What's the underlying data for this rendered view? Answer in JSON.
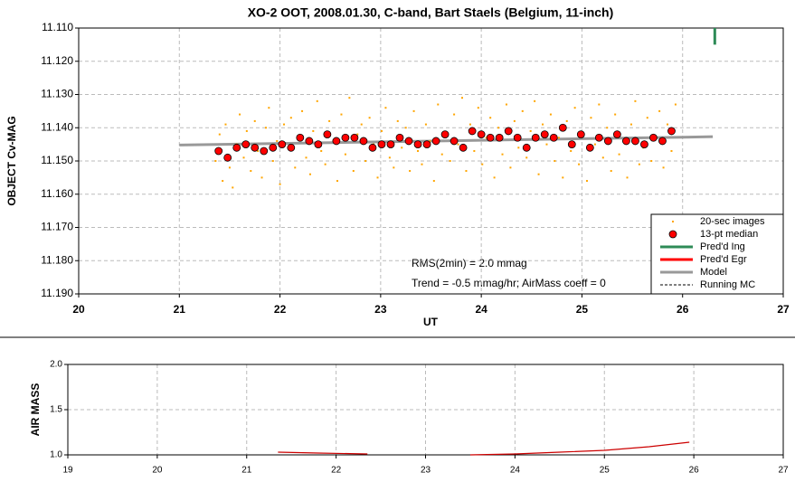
{
  "chart_data": [
    {
      "type": "scatter",
      "title": "XO-2 OOT, 2008.01.30, C-band, Bart Staels (Belgium, 11-inch)",
      "xlabel": "UT",
      "ylabel": "OBJECT Cv-MAG",
      "xlim": [
        20,
        27
      ],
      "xticks": [
        20,
        21,
        22,
        23,
        24,
        25,
        26,
        27
      ],
      "ylim": [
        11.11,
        11.19
      ],
      "inverted": true,
      "yticks": [
        {
          "value": 11.11,
          "label": "11.110"
        },
        {
          "value": 11.12,
          "label": "11.120"
        },
        {
          "value": 11.13,
          "label": "11.130"
        },
        {
          "value": 11.14,
          "label": "11.140"
        },
        {
          "value": 11.15,
          "label": "11.150"
        },
        {
          "value": 11.16,
          "label": "11.160"
        },
        {
          "value": 11.17,
          "label": "11.170"
        },
        {
          "value": 11.18,
          "label": "11.180"
        },
        {
          "value": 11.19,
          "label": "11.190"
        }
      ],
      "grid": true,
      "legend": "lower right",
      "annotations": [
        "RMS(2min) = 2.0 mmag",
        "Trend = -0.5 mmag/hr; AirMass coeff = 0"
      ],
      "series": [
        {
          "name": "20-sec images",
          "color": "#ffa500",
          "marker": "dot",
          "x": [
            21.36,
            21.4,
            21.43,
            21.46,
            21.5,
            21.53,
            21.57,
            21.6,
            21.64,
            21.67,
            21.71,
            21.75,
            21.78,
            21.82,
            21.86,
            21.89,
            21.93,
            21.97,
            22.0,
            22.04,
            22.08,
            22.11,
            22.15,
            22.19,
            22.22,
            22.26,
            22.3,
            22.33,
            22.37,
            22.41,
            22.45,
            22.49,
            22.53,
            22.57,
            22.61,
            22.65,
            22.69,
            22.73,
            22.77,
            22.81,
            22.85,
            22.89,
            22.93,
            22.97,
            23.01,
            23.05,
            23.09,
            23.13,
            23.17,
            23.21,
            23.25,
            23.29,
            23.33,
            23.37,
            23.41,
            23.45,
            23.49,
            23.53,
            23.57,
            23.61,
            23.65,
            23.69,
            23.73,
            23.77,
            23.81,
            23.85,
            23.89,
            23.93,
            23.97,
            24.01,
            24.05,
            24.09,
            24.13,
            24.17,
            24.21,
            24.25,
            24.29,
            24.33,
            24.37,
            24.41,
            24.45,
            24.49,
            24.53,
            24.57,
            24.61,
            24.65,
            24.69,
            24.73,
            24.77,
            24.81,
            24.85,
            24.89,
            24.93,
            24.97,
            25.01,
            25.05,
            25.09,
            25.13,
            25.17,
            25.21,
            25.25,
            25.29,
            25.33,
            25.37,
            25.41,
            25.45,
            25.49,
            25.53,
            25.57,
            25.61,
            25.65,
            25.69,
            25.73,
            25.77,
            25.81,
            25.85,
            25.89,
            25.93
          ],
          "values": [
            11.15,
            11.142,
            11.156,
            11.139,
            11.152,
            11.158,
            11.145,
            11.136,
            11.149,
            11.141,
            11.153,
            11.138,
            11.147,
            11.155,
            11.14,
            11.134,
            11.15,
            11.144,
            11.157,
            11.139,
            11.146,
            11.137,
            11.152,
            11.143,
            11.135,
            11.149,
            11.154,
            11.141,
            11.132,
            11.147,
            11.151,
            11.138,
            11.144,
            11.156,
            11.136,
            11.148,
            11.131,
            11.153,
            11.142,
            11.139,
            11.15,
            11.137,
            11.145,
            11.155,
            11.141,
            11.134,
            11.149,
            11.152,
            11.138,
            11.146,
            11.14,
            11.153,
            11.135,
            11.147,
            11.151,
            11.139,
            11.144,
            11.156,
            11.133,
            11.148,
            11.142,
            11.15,
            11.136,
            11.145,
            11.131,
            11.153,
            11.139,
            11.147,
            11.134,
            11.151,
            11.143,
            11.137,
            11.155,
            11.14,
            11.148,
            11.133,
            11.152,
            11.138,
            11.146,
            11.135,
            11.149,
            11.141,
            11.132,
            11.154,
            11.139,
            11.145,
            11.136,
            11.15,
            11.143,
            11.155,
            11.138,
            11.147,
            11.134,
            11.151,
            11.142,
            11.156,
            11.137,
            11.145,
            11.133,
            11.149,
            11.14,
            11.153,
            11.136,
            11.148,
            11.144,
            11.155,
            11.139,
            11.132,
            11.151,
            11.146,
            11.137,
            11.15,
            11.143,
            11.135,
            11.152,
            11.139,
            11.147,
            11.133
          ]
        },
        {
          "name": "13-pt median",
          "color": "#ff0000",
          "marker": "circle",
          "x": [
            21.39,
            21.48,
            21.57,
            21.66,
            21.75,
            21.84,
            21.93,
            22.02,
            22.11,
            22.2,
            22.29,
            22.38,
            22.47,
            22.56,
            22.65,
            22.74,
            22.83,
            22.92,
            23.01,
            23.1,
            23.19,
            23.28,
            23.37,
            23.46,
            23.55,
            23.64,
            23.73,
            23.82,
            23.91,
            24.0,
            24.09,
            24.18,
            24.27,
            24.36,
            24.45,
            24.54,
            24.63,
            24.72,
            24.81,
            24.9,
            24.99,
            25.08,
            25.17,
            25.26,
            25.35,
            25.44,
            25.53,
            25.62,
            25.71,
            25.8,
            25.89
          ],
          "values": [
            11.147,
            11.149,
            11.146,
            11.145,
            11.146,
            11.147,
            11.146,
            11.145,
            11.146,
            11.143,
            11.144,
            11.145,
            11.142,
            11.144,
            11.143,
            11.143,
            11.144,
            11.146,
            11.145,
            11.145,
            11.143,
            11.144,
            11.145,
            11.145,
            11.144,
            11.142,
            11.144,
            11.146,
            11.141,
            11.142,
            11.143,
            11.143,
            11.141,
            11.143,
            11.146,
            11.143,
            11.142,
            11.143,
            11.14,
            11.145,
            11.142,
            11.146,
            11.143,
            11.144,
            11.142,
            11.144,
            11.144,
            11.145,
            11.143,
            11.144,
            11.141
          ]
        },
        {
          "name": "Pred'd Ing",
          "color": "#2e8b57",
          "marker": "line",
          "x": [
            26.32,
            26.32
          ],
          "values": [
            11.11,
            11.115
          ]
        },
        {
          "name": "Pred'd Egr",
          "color": "#ff0000",
          "marker": "line"
        },
        {
          "name": "Model",
          "color": "#999999",
          "marker": "line",
          "x": [
            21.0,
            26.3
          ],
          "values": [
            11.1452,
            11.1427
          ]
        },
        {
          "name": "Running MC",
          "color": "#000000",
          "marker": "dash"
        }
      ]
    },
    {
      "type": "line",
      "ylabel": "AIR MASS",
      "xlim": [
        19,
        27
      ],
      "xticks": [
        19,
        20,
        21,
        22,
        23,
        24,
        25,
        26,
        27
      ],
      "ylim": [
        1.0,
        2.0
      ],
      "yticks": [
        {
          "value": 1.0,
          "label": "1.0"
        },
        {
          "value": 1.5,
          "label": "1.5"
        },
        {
          "value": 2.0,
          "label": "2.0"
        }
      ],
      "grid": true,
      "series": [
        {
          "color": "#cc0000",
          "x": [
            21.35,
            21.8,
            22.35,
            null,
            23.5,
            24.0,
            24.5,
            25.0,
            25.5,
            25.95
          ],
          "values": [
            1.03,
            1.02,
            1.01,
            null,
            1.0,
            1.01,
            1.03,
            1.05,
            1.09,
            1.14
          ]
        }
      ]
    }
  ]
}
